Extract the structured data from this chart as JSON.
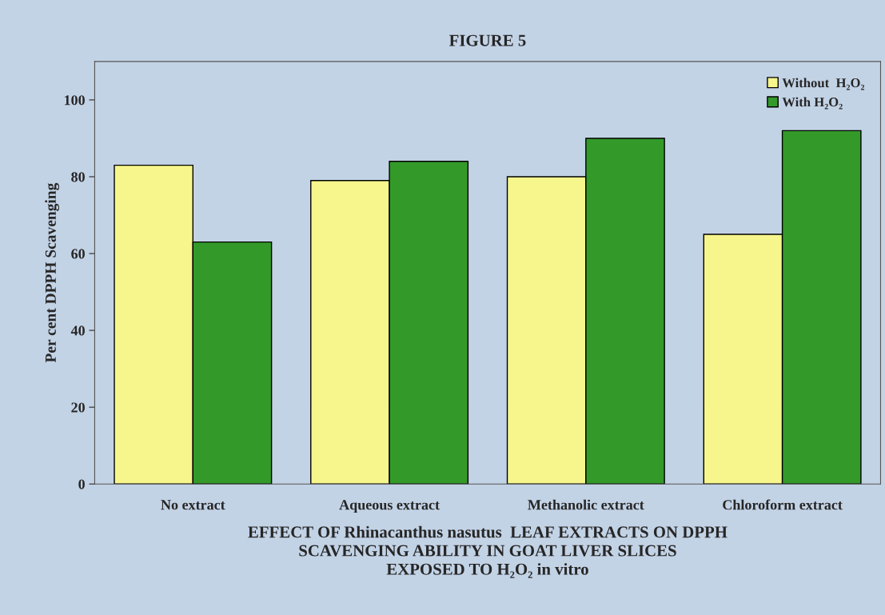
{
  "chart_data": {
    "type": "bar",
    "title": "FIGURE 5",
    "ylabel": "Per cent DPPH Scavenging",
    "xlabel": "EFFECT OF Rhinacanthus nasutus  LEAF EXTRACTS ON DPPH\nSCAVENGING ABILITY IN GOAT LIVER SLICES\nEXPOSED TO H₂O₂ in vitro",
    "categories": [
      "No extract",
      "Aqueous extract",
      "Methanolic extract",
      "Chloroform extract"
    ],
    "series": [
      {
        "name": "Without  H₂O₂",
        "color": "#f6f68c",
        "values": [
          83,
          79,
          80,
          65
        ]
      },
      {
        "name": "With H₂O₂",
        "color": "#339a2a",
        "values": [
          63,
          84,
          90,
          92
        ]
      }
    ],
    "ylim": [
      0,
      110
    ],
    "yticks": [
      0,
      20,
      40,
      60,
      80,
      100
    ],
    "grid": false,
    "legend": "top right"
  }
}
